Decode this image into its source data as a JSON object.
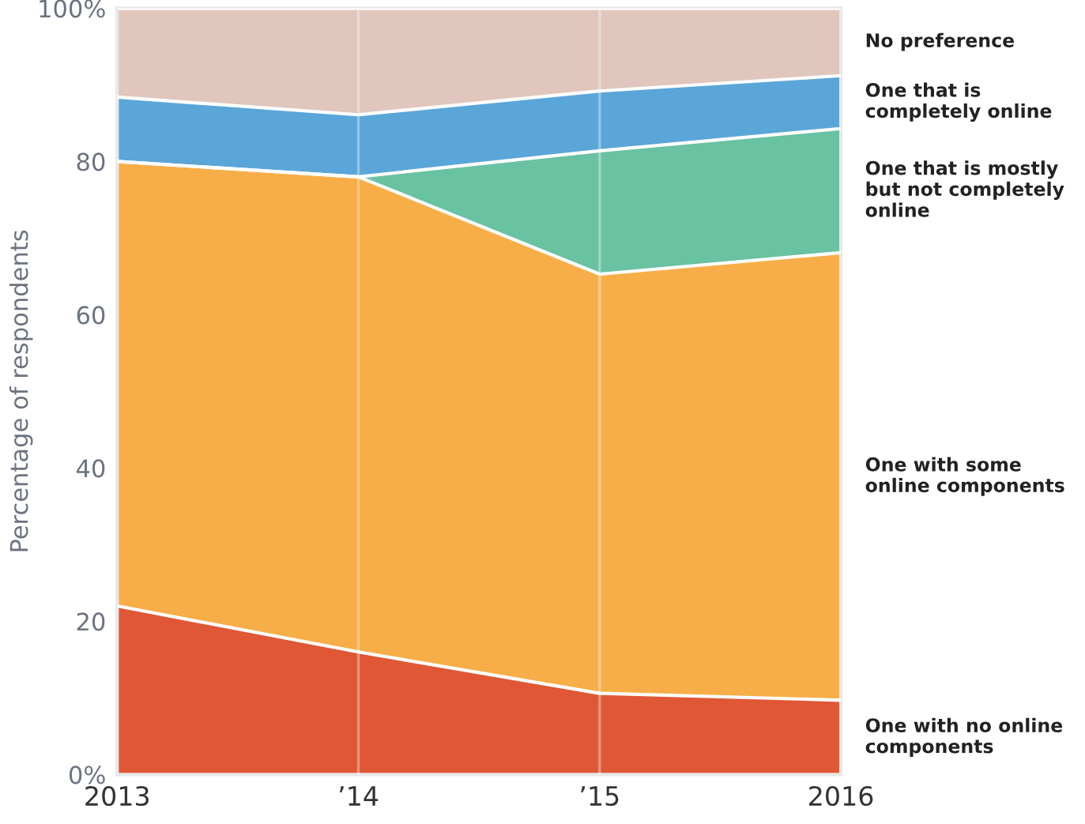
{
  "chart_data": {
    "type": "area",
    "stacked": true,
    "ylabel": "Percentage of respondents",
    "categories": [
      "2013",
      "’14",
      "’15",
      "2016"
    ],
    "series": [
      {
        "name": "One with no online components",
        "color": "#e05735",
        "values": [
          22,
          16,
          10.6,
          9.7
        ]
      },
      {
        "name": "One with some online components",
        "color": "#f8ae48",
        "values": [
          58,
          62,
          54.7,
          58.4
        ]
      },
      {
        "name": "One that is mostly but not completely online",
        "color": "#69c2a2",
        "values": [
          0,
          0,
          16.1,
          16.2
        ]
      },
      {
        "name": "One that is completely online",
        "color": "#5ba6d8",
        "values": [
          8.4,
          8.1,
          7.8,
          6.9
        ]
      },
      {
        "name": "No preference",
        "color": "#e1c6bd",
        "values": [
          11.6,
          13.9,
          10.8,
          8.8
        ]
      }
    ],
    "ylim": [
      0,
      100
    ],
    "yticks": [
      {
        "value": 0,
        "label": "0%"
      },
      20,
      40,
      60,
      80,
      {
        "value": 100,
        "label": "100%"
      }
    ],
    "grid": "x",
    "legend": false
  }
}
